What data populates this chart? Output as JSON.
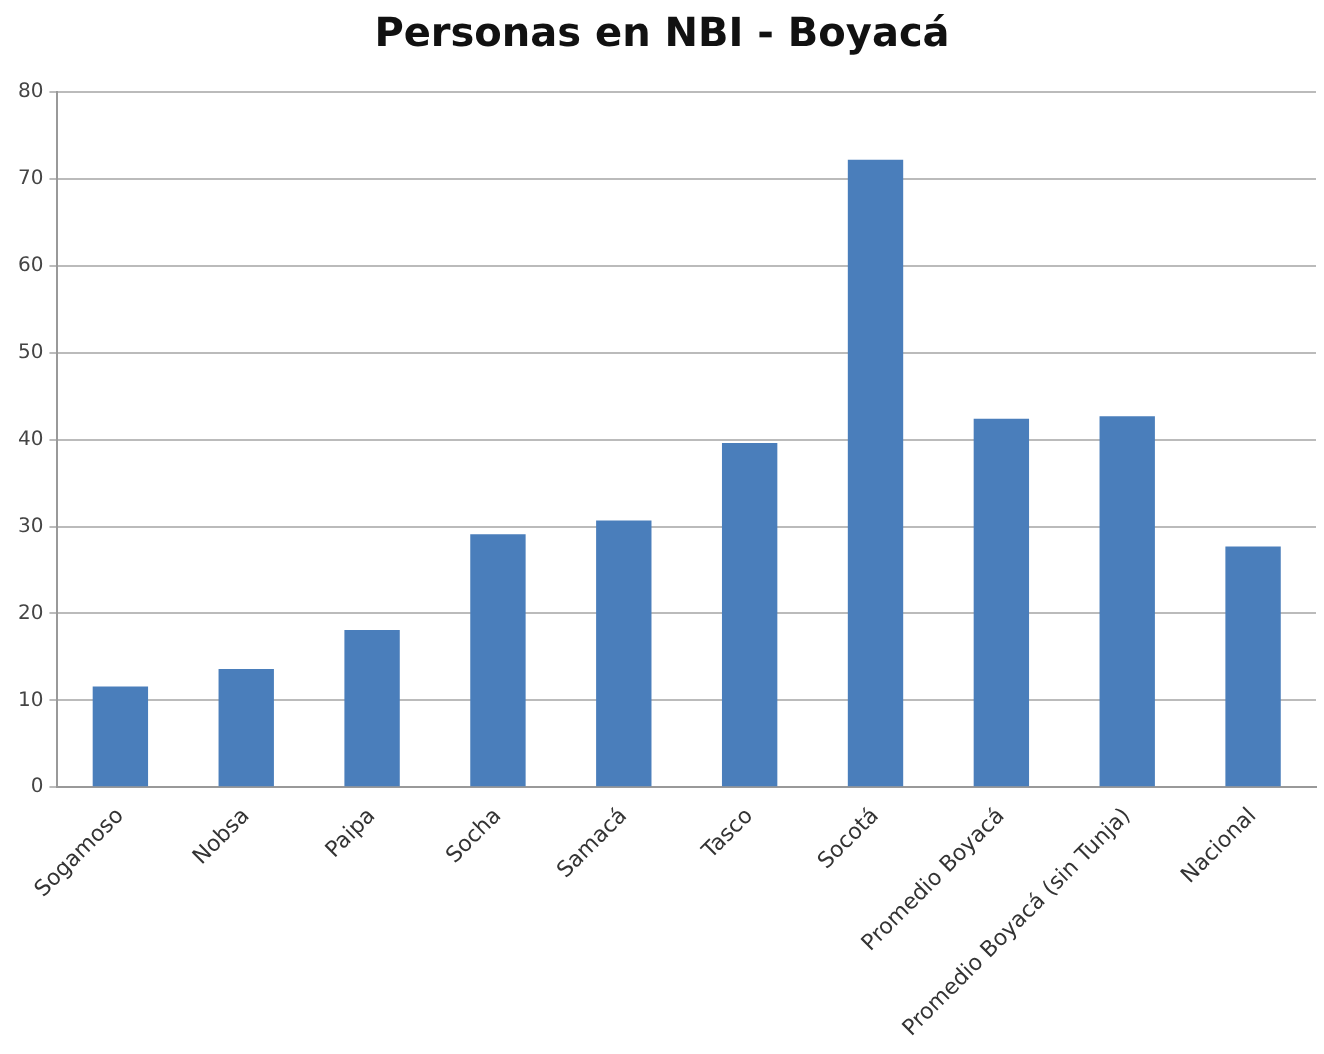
{
  "chart_data": {
    "type": "bar",
    "title": "Personas en NBI - Boyacá",
    "categories": [
      "Sogamoso",
      "Nobsa",
      "Paipa",
      "Socha",
      "Samacá",
      "Tasco",
      "Socotá",
      "Promedio Boyacá",
      "Promedio Boyacá (sin Tunja)",
      "Nacional"
    ],
    "values": [
      11.6,
      13.6,
      18.1,
      29.1,
      30.7,
      39.6,
      72.2,
      42.4,
      42.7,
      27.7
    ],
    "color": "#4a7ebb",
    "ylim": [
      0,
      80
    ],
    "yticks": [
      0,
      10,
      20,
      30,
      40,
      50,
      60,
      70,
      80
    ],
    "grid": "y"
  }
}
